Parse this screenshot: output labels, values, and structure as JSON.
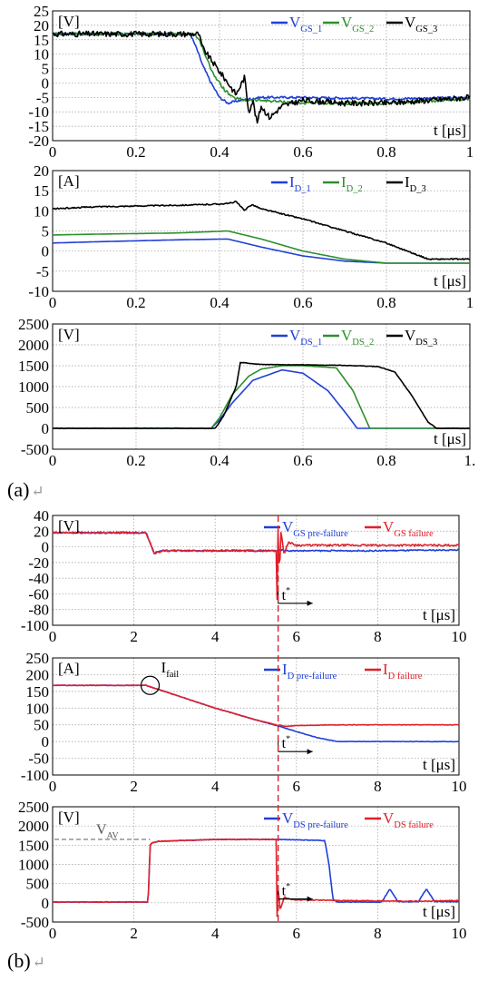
{
  "captions": {
    "a": "(a)",
    "b": "(b)",
    "return_mark": "↵"
  },
  "colors": {
    "blue": "#1f3fd6",
    "green": "#2e8f2e",
    "black": "#000000",
    "red": "#e0202a",
    "grid": "#9a9a9a",
    "vav": "#888888",
    "cursor": "#e0202a"
  },
  "chart_data": [
    {
      "id": "a-vgs",
      "type": "line",
      "unit_label": "[V]",
      "xlabel": "t [μs]",
      "xlim": [
        0,
        1
      ],
      "ylim": [
        -20,
        25
      ],
      "xticks": [
        "0",
        "0.2",
        "0.4",
        "0.6",
        "0.8",
        "1"
      ],
      "yticks": [
        "25",
        "20",
        "15",
        "10",
        "5",
        "0",
        "-5",
        "-10",
        "-15",
        "-20"
      ],
      "legend": [
        {
          "base": "V",
          "sub": "GS_1",
          "color": "blue"
        },
        {
          "base": "V",
          "sub": "GS_2",
          "color": "green"
        },
        {
          "base": "V",
          "sub": "GS_3",
          "color": "black"
        }
      ],
      "series": [
        {
          "name": "VGS_1",
          "color": "blue",
          "noise": 0.4,
          "x": [
            0,
            0.33,
            0.345,
            0.36,
            0.38,
            0.4,
            0.42,
            0.45,
            0.5,
            0.6,
            0.8,
            1
          ],
          "y": [
            17,
            17,
            12,
            6,
            0,
            -5,
            -7,
            -6,
            -5,
            -5,
            -5.5,
            -5
          ]
        },
        {
          "name": "VGS_2",
          "color": "green",
          "noise": 0.5,
          "x": [
            0,
            0.34,
            0.355,
            0.37,
            0.39,
            0.41,
            0.43,
            0.46,
            0.5,
            0.6,
            0.8,
            1
          ],
          "y": [
            17,
            17,
            14,
            8,
            2,
            -2,
            -5,
            -6,
            -6,
            -7,
            -7,
            -5.5
          ]
        },
        {
          "name": "VGS_3",
          "color": "black",
          "noise": 1.0,
          "x": [
            0,
            0.35,
            0.36,
            0.38,
            0.4,
            0.42,
            0.44,
            0.46,
            0.47,
            0.48,
            0.49,
            0.5,
            0.52,
            0.55,
            0.6,
            0.7,
            0.8,
            0.9,
            1
          ],
          "y": [
            17,
            17,
            12,
            8,
            4,
            0,
            -4,
            2,
            -10,
            -6,
            -14,
            -8,
            -12,
            -8,
            -6,
            -7,
            -7,
            -6,
            -5
          ]
        }
      ]
    },
    {
      "id": "a-id",
      "type": "line",
      "unit_label": "[A]",
      "xlabel": "t [μs]",
      "xlim": [
        0,
        1
      ],
      "ylim": [
        -10,
        20
      ],
      "xticks": [
        "0",
        "0.2",
        "0.4",
        "0.6",
        "0.8",
        "1"
      ],
      "yticks": [
        "20",
        "15",
        "10",
        "5",
        "0",
        "-5",
        "-10"
      ],
      "legend": [
        {
          "base": "I",
          "sub": "D_1",
          "color": "blue"
        },
        {
          "base": "I",
          "sub": "D_2",
          "color": "green"
        },
        {
          "base": "I",
          "sub": "D_3",
          "color": "black"
        }
      ],
      "series": [
        {
          "name": "ID_1",
          "color": "blue",
          "noise": 0.0,
          "x": [
            0,
            0.1,
            0.3,
            0.42,
            0.5,
            0.6,
            0.7,
            0.8,
            0.9,
            1
          ],
          "y": [
            2,
            2.3,
            2.8,
            3,
            1,
            -1.2,
            -2.5,
            -3,
            -3,
            -3
          ]
        },
        {
          "name": "ID_2",
          "color": "green",
          "noise": 0.0,
          "x": [
            0,
            0.1,
            0.3,
            0.42,
            0.5,
            0.6,
            0.7,
            0.8,
            0.9,
            1
          ],
          "y": [
            4,
            4.2,
            4.5,
            5,
            3,
            0,
            -2,
            -3,
            -3,
            -3
          ]
        },
        {
          "name": "ID_3",
          "color": "black",
          "noise": 0.15,
          "x": [
            0,
            0.1,
            0.2,
            0.35,
            0.42,
            0.44,
            0.46,
            0.47,
            0.48,
            0.5,
            0.6,
            0.7,
            0.8,
            0.9,
            1
          ],
          "y": [
            10.5,
            11,
            11.2,
            11.5,
            11.8,
            12.3,
            10,
            11.2,
            11.5,
            10.5,
            8,
            5,
            2,
            -2,
            -2
          ]
        }
      ]
    },
    {
      "id": "a-vds",
      "type": "line",
      "unit_label": "[V]",
      "xlabel": "t [μs]",
      "xlim": [
        0,
        1
      ],
      "ylim": [
        -500,
        2500
      ],
      "xticks": [
        "0",
        "0.2",
        "0.4",
        "0.6",
        "0.8",
        "1."
      ],
      "yticks": [
        "2500",
        "2000",
        "1500",
        "1000",
        "500",
        "0",
        "-500"
      ],
      "legend": [
        {
          "base": "V",
          "sub": "DS_1",
          "color": "blue"
        },
        {
          "base": "V",
          "sub": "DS_2",
          "color": "green"
        },
        {
          "base": "V",
          "sub": "DS_3",
          "color": "black"
        }
      ],
      "series": [
        {
          "name": "VDS_1",
          "color": "blue",
          "noise": 0.0,
          "x": [
            0,
            0.38,
            0.4,
            0.43,
            0.48,
            0.55,
            0.6,
            0.66,
            0.7,
            0.73,
            1
          ],
          "y": [
            0,
            0,
            200,
            600,
            1150,
            1400,
            1320,
            900,
            400,
            0,
            0
          ]
        },
        {
          "name": "VDS_2",
          "color": "green",
          "noise": 0.0,
          "x": [
            0,
            0.38,
            0.4,
            0.43,
            0.47,
            0.5,
            0.55,
            0.6,
            0.68,
            0.72,
            0.76,
            1
          ],
          "y": [
            0,
            0,
            250,
            800,
            1250,
            1420,
            1500,
            1500,
            1450,
            900,
            0,
            0
          ]
        },
        {
          "name": "VDS_3",
          "color": "black",
          "noise": 6,
          "x": [
            0,
            0.39,
            0.41,
            0.44,
            0.45,
            0.5,
            0.6,
            0.7,
            0.78,
            0.82,
            0.86,
            0.9,
            0.92,
            1
          ],
          "y": [
            0,
            0,
            300,
            1000,
            1580,
            1530,
            1520,
            1510,
            1480,
            1350,
            800,
            150,
            0,
            0
          ]
        }
      ]
    },
    {
      "id": "b-vgs",
      "type": "line",
      "unit_label": "[V]",
      "xlabel": "t [μs]",
      "xlim": [
        0,
        10
      ],
      "ylim": [
        -100,
        40
      ],
      "xticks": [
        "0",
        "2",
        "4",
        "6",
        "8",
        "10"
      ],
      "yticks": [
        "40",
        "20",
        "0",
        "-20",
        "-40",
        "-60",
        "-80",
        "-100"
      ],
      "legend": [
        {
          "base": "V",
          "sub": "GS pre-failure",
          "color": "blue"
        },
        {
          "base": "V",
          "sub": "GS failure",
          "color": "red"
        }
      ],
      "annotation": "t",
      "annotation_sup": "*",
      "series": [
        {
          "name": "VGS pre-failure",
          "color": "blue",
          "noise": 0.8,
          "x": [
            0,
            2.3,
            2.4,
            2.5,
            2.7,
            5.5,
            5.6,
            5.8,
            6,
            7,
            8,
            10
          ],
          "y": [
            18,
            18,
            5,
            -8,
            -5,
            -5,
            -4,
            -5,
            -5,
            -5,
            -5,
            -4
          ]
        },
        {
          "name": "VGS failure",
          "color": "red",
          "noise": 1.2,
          "x": [
            0,
            2.3,
            2.4,
            2.5,
            2.7,
            5.5,
            5.52,
            5.55,
            5.58,
            5.62,
            5.7,
            5.8,
            6,
            7,
            8,
            10
          ],
          "y": [
            18,
            18,
            5,
            -8,
            -5,
            -5,
            -80,
            30,
            -40,
            20,
            -10,
            6,
            2,
            2,
            2,
            2
          ]
        }
      ]
    },
    {
      "id": "b-id",
      "type": "line",
      "unit_label": "[A]",
      "xlabel": "t [μs]",
      "xlim": [
        0,
        10
      ],
      "ylim": [
        -100,
        250
      ],
      "xticks": [
        "0",
        "2",
        "4",
        "6",
        "8",
        "10"
      ],
      "yticks": [
        "250",
        "200",
        "150",
        "100",
        "50",
        "0",
        "-50",
        "-100"
      ],
      "legend": [
        {
          "base": "I",
          "sub": "D pre-failure",
          "color": "blue"
        },
        {
          "base": "I",
          "sub": "D failure",
          "color": "red"
        }
      ],
      "label_ifail": {
        "base": "I",
        "sub": "fail"
      },
      "annotation": "t",
      "annotation_sup": "*",
      "series": [
        {
          "name": "ID pre-failure",
          "color": "blue",
          "noise": 0.6,
          "x": [
            0,
            2.3,
            3,
            4,
            5,
            5.6,
            6,
            6.5,
            7,
            8,
            10
          ],
          "y": [
            168,
            168,
            140,
            100,
            65,
            45,
            30,
            12,
            0,
            0,
            0
          ]
        },
        {
          "name": "ID failure",
          "color": "red",
          "noise": 0.8,
          "x": [
            0,
            2.3,
            3,
            4,
            5,
            5.55,
            5.6,
            5.7,
            6,
            7,
            8,
            10
          ],
          "y": [
            168,
            168,
            140,
            100,
            65,
            48,
            50,
            45,
            48,
            50,
            50,
            50
          ]
        }
      ]
    },
    {
      "id": "b-vds",
      "type": "line",
      "unit_label": "[V]",
      "xlabel": "t [μs]",
      "xlim": [
        0,
        10
      ],
      "ylim": [
        -500,
        2500
      ],
      "xticks": [
        "0",
        "2",
        "4",
        "6",
        "8",
        "10"
      ],
      "yticks": [
        "2500",
        "2000",
        "1500",
        "1000",
        "500",
        "0",
        "-500"
      ],
      "legend": [
        {
          "base": "V",
          "sub": "DS pre-failure",
          "color": "blue"
        },
        {
          "base": "V",
          "sub": "DS failure",
          "color": "red"
        }
      ],
      "vav": {
        "base": "V",
        "sub": "AV",
        "value": 1650
      },
      "annotation": "t",
      "annotation_sup": "*",
      "series": [
        {
          "name": "VDS pre-failure",
          "color": "blue",
          "noise": 8,
          "x": [
            0,
            2.35,
            2.4,
            2.45,
            2.6,
            4,
            5.5,
            6,
            6.7,
            6.8,
            6.9,
            7,
            7.5,
            8.1,
            8.3,
            8.5,
            8.7,
            9.0,
            9.2,
            9.4,
            9.6,
            10
          ],
          "y": [
            20,
            20,
            1500,
            1560,
            1600,
            1650,
            1650,
            1640,
            1620,
            1000,
            100,
            20,
            20,
            20,
            360,
            30,
            30,
            30,
            360,
            30,
            30,
            30
          ]
        },
        {
          "name": "VDS failure",
          "color": "red",
          "noise": 10,
          "x": [
            0,
            2.35,
            2.4,
            2.45,
            2.6,
            4,
            5.5,
            5.52,
            5.55,
            5.6,
            5.7,
            5.9,
            6.5,
            7,
            8,
            9,
            10
          ],
          "y": [
            20,
            20,
            1500,
            1560,
            1600,
            1650,
            1650,
            -450,
            400,
            -200,
            150,
            80,
            70,
            60,
            50,
            40,
            60
          ]
        }
      ]
    }
  ]
}
